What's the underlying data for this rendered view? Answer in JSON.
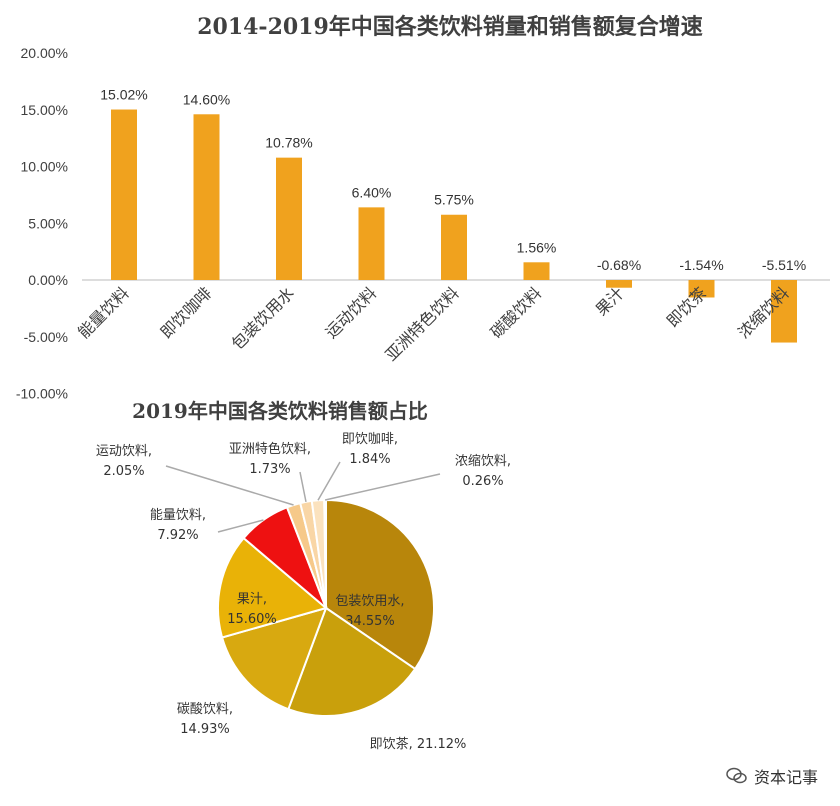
{
  "bar_chart": {
    "title": "2014-2019年中国各类饮料销量和销售额复合增速",
    "yticks": [
      "20.00%",
      "15.00%",
      "10.00%",
      "5.00%",
      "0.00%",
      "-5.00%",
      "-10.00%"
    ],
    "bar_color": "#F0A21E"
  },
  "pie_chart": {
    "title": "2019年中国各类饮料销售额占比"
  },
  "watermark": {
    "text": "资本记事"
  },
  "chart_data": [
    {
      "type": "bar",
      "title": "2014-2019年中国各类饮料销量和销售额复合增速",
      "categories": [
        "能量饮料",
        "即饮咖啡",
        "包装饮用水",
        "运动饮料",
        "亚洲特色饮料",
        "碳酸饮料",
        "果汁",
        "即饮茶",
        "浓缩饮料"
      ],
      "values": [
        15.02,
        14.6,
        10.78,
        6.4,
        5.75,
        1.56,
        -0.68,
        -1.54,
        -5.51
      ],
      "labels": [
        "15.02%",
        "14.60%",
        "10.78%",
        "6.40%",
        "5.75%",
        "1.56%",
        "-0.68%",
        "-1.54%",
        "-5.51%"
      ],
      "ylim": [
        -10,
        20
      ],
      "grid": false,
      "xlabel": "",
      "ylabel": ""
    },
    {
      "type": "pie",
      "title": "2019年中国各类饮料销售额占比",
      "slices": [
        {
          "name": "包装饮用水",
          "label": "包装饮用水,",
          "pct": "34.55%",
          "value": 34.55,
          "color": "#B8860B"
        },
        {
          "name": "即饮茶",
          "label": "即饮茶,",
          "pct": "21.12%",
          "value": 21.12,
          "color": "#C9A00C"
        },
        {
          "name": "碳酸饮料",
          "label": "碳酸饮料,",
          "pct": "14.93%",
          "value": 14.93,
          "color": "#D8A910"
        },
        {
          "name": "果汁",
          "label": "果汁,",
          "pct": "15.60%",
          "value": 15.6,
          "color": "#E9B207"
        },
        {
          "name": "能量饮料",
          "label": "能量饮料,",
          "pct": "7.92%",
          "value": 7.92,
          "color": "#EE1111"
        },
        {
          "name": "运动饮料",
          "label": "运动饮料,",
          "pct": "2.05%",
          "value": 2.05,
          "color": "#F6C98A"
        },
        {
          "name": "亚洲特色饮料",
          "label": "亚洲特色饮料,",
          "pct": "1.73%",
          "value": 1.73,
          "color": "#F9D6A6"
        },
        {
          "name": "即饮咖啡",
          "label": "即饮咖啡,",
          "pct": "1.84%",
          "value": 1.84,
          "color": "#FBE2BE"
        },
        {
          "name": "浓缩饮料",
          "label": "浓缩饮料,",
          "pct": "0.26%",
          "value": 0.26,
          "color": "#FFF3E0"
        }
      ]
    }
  ]
}
